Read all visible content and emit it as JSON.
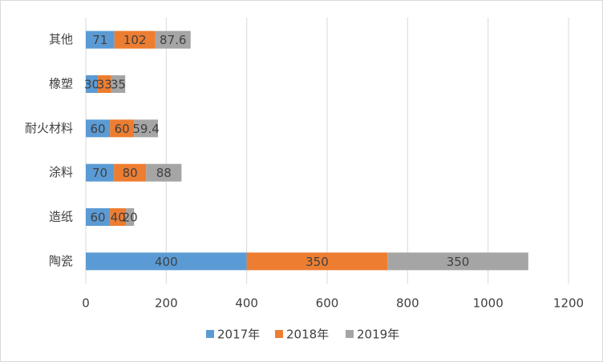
{
  "chart_data": {
    "type": "stacked-barh",
    "categories": [
      "陶瓷",
      "造纸",
      "涂料",
      "耐火材料",
      "橡塑",
      "其他"
    ],
    "series": [
      {
        "name": "2017年",
        "color": "#5b9bd5",
        "values": [
          400,
          60,
          70,
          60,
          30,
          71
        ]
      },
      {
        "name": "2018年",
        "color": "#ed7d31",
        "values": [
          350,
          40,
          80,
          60,
          33,
          102
        ]
      },
      {
        "name": "2019年",
        "color": "#a5a5a5",
        "values": [
          350,
          20,
          88,
          59.4,
          35,
          87.6
        ]
      }
    ],
    "xlim": [
      0,
      1200
    ],
    "xticks": [
      0,
      200,
      400,
      600,
      800,
      1000,
      1200
    ],
    "grid": true,
    "legend": "bottom"
  }
}
